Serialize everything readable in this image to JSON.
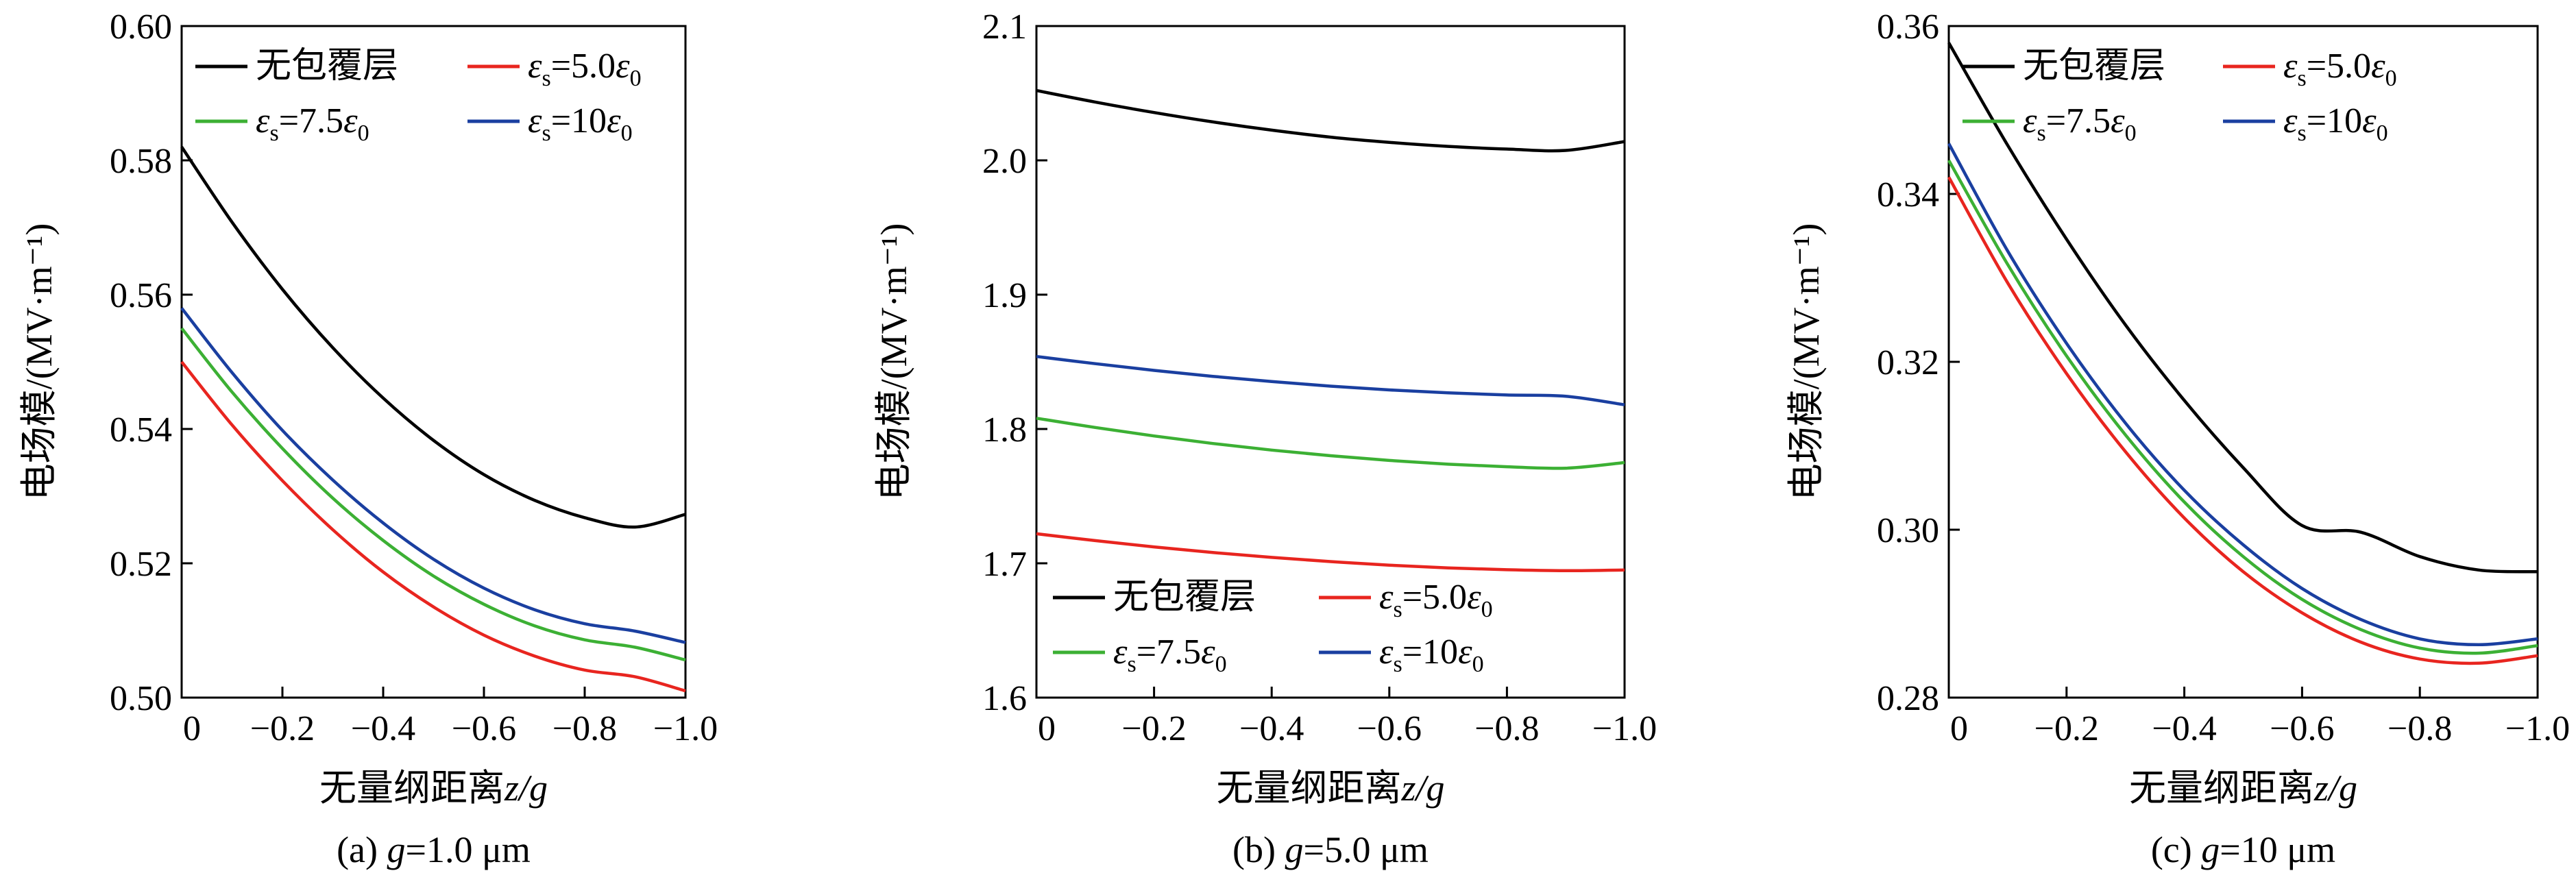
{
  "chart_data": [
    {
      "type": "line",
      "caption_prefix": "(a) ",
      "caption_var": "g",
      "caption_suffix": "=1.0 μm",
      "xlabel_text": "无量纲距离",
      "xlabel_var": "z/g",
      "ylabel": "电场模/(MV·m⁻¹)",
      "xlim": [
        0,
        -1.0
      ],
      "ylim": [
        0.5,
        0.6
      ],
      "xticks": [
        "0",
        "−0.2",
        "−0.4",
        "−0.6",
        "−0.8",
        "−1.0"
      ],
      "yticks": [
        "0.50",
        "0.52",
        "0.54",
        "0.56",
        "0.58",
        "0.60"
      ],
      "legend": "top",
      "x": [
        0,
        -0.1,
        -0.2,
        -0.3,
        -0.4,
        -0.5,
        -0.6,
        -0.7,
        -0.8,
        -0.9,
        -1.0
      ],
      "series": [
        {
          "name": "无包覆层",
          "color": "#000000",
          "values": [
            0.582,
            0.5708,
            0.5608,
            0.5521,
            0.5446,
            0.5383,
            0.5332,
            0.5294,
            0.5268,
            0.5254,
            0.5273
          ]
        },
        {
          "name": "εs=5.0ε0",
          "color": "#e8251f",
          "values": [
            0.55,
            0.5406,
            0.5323,
            0.525,
            0.5187,
            0.5135,
            0.5093,
            0.5062,
            0.5041,
            0.5031,
            0.501
          ]
        },
        {
          "name": "εs=7.5ε0",
          "color": "#3cb034",
          "values": [
            0.555,
            0.5455,
            0.5371,
            0.5297,
            0.5234,
            0.5181,
            0.5139,
            0.5107,
            0.5086,
            0.5075,
            0.5056
          ]
        },
        {
          "name": "εs=10ε0",
          "color": "#1a3fa0",
          "values": [
            0.558,
            0.5484,
            0.5398,
            0.5324,
            0.526,
            0.5206,
            0.5163,
            0.5131,
            0.511,
            0.5099,
            0.5082
          ]
        }
      ]
    },
    {
      "type": "line",
      "caption_prefix": "(b) ",
      "caption_var": "g",
      "caption_suffix": "=5.0 μm",
      "xlabel_text": "无量纲距离",
      "xlabel_var": "z/g",
      "ylabel": "电场模/(MV·m⁻¹)",
      "xlim": [
        0,
        -1.0
      ],
      "ylim": [
        1.6,
        2.1
      ],
      "xticks": [
        "0",
        "−0.2",
        "−0.4",
        "−0.6",
        "−0.8",
        "−1.0"
      ],
      "yticks": [
        "1.6",
        "1.7",
        "1.8",
        "1.9",
        "2.0",
        "2.1"
      ],
      "legend": "bottom",
      "x": [
        0,
        -0.1,
        -0.2,
        -0.3,
        -0.4,
        -0.5,
        -0.6,
        -0.7,
        -0.8,
        -0.9,
        -1.0
      ],
      "series": [
        {
          "name": "无包覆层",
          "color": "#000000",
          "values": [
            2.052,
            2.0434,
            2.0356,
            2.0286,
            2.0225,
            2.0173,
            2.0134,
            2.0104,
            2.0084,
            2.0074,
            2.014
          ]
        },
        {
          "name": "εs=5.0ε0",
          "color": "#e8251f",
          "values": [
            1.722,
            1.7169,
            1.7122,
            1.708,
            1.7044,
            1.7013,
            1.6986,
            1.6966,
            1.6952,
            1.6945,
            1.695
          ]
        },
        {
          "name": "εs=7.5ε0",
          "color": "#3cb034",
          "values": [
            1.808,
            1.8011,
            1.7948,
            1.7892,
            1.7843,
            1.7801,
            1.7766,
            1.7738,
            1.7719,
            1.7708,
            1.775
          ]
        },
        {
          "name": "εs=10ε0",
          "color": "#1a3fa0",
          "values": [
            1.854,
            1.8486,
            1.8436,
            1.8392,
            1.8353,
            1.8319,
            1.8291,
            1.8269,
            1.8253,
            1.8244,
            1.818
          ]
        }
      ]
    },
    {
      "type": "line",
      "caption_prefix": "(c) ",
      "caption_var": "g",
      "caption_suffix": "=10 μm",
      "xlabel_text": "无量纲距离",
      "xlabel_var": "z/g",
      "ylabel": "电场模/(MV·m⁻¹)",
      "xlim": [
        0,
        -1.0
      ],
      "ylim": [
        0.28,
        0.36
      ],
      "xticks": [
        "0",
        "−0.2",
        "−0.4",
        "−0.6",
        "−0.8",
        "−1.0"
      ],
      "yticks": [
        "0.28",
        "0.30",
        "0.32",
        "0.34",
        "0.36"
      ],
      "legend": "top",
      "x": [
        0,
        -0.1,
        -0.2,
        -0.3,
        -0.4,
        -0.5,
        -0.6,
        -0.7,
        -0.8,
        -0.9,
        -1.0
      ],
      "series": [
        {
          "name": "无包覆层",
          "color": "#000000",
          "values": [
            0.358,
            0.3458,
            0.3346,
            0.3244,
            0.3154,
            0.3074,
            0.3005,
            0.2997,
            0.2968,
            0.2952,
            0.295
          ]
        },
        {
          "name": "εs=5.0ε0",
          "color": "#e8251f",
          "values": [
            0.342,
            0.3294,
            0.3186,
            0.3093,
            0.3014,
            0.295,
            0.2901,
            0.2866,
            0.2846,
            0.2841,
            0.285
          ]
        },
        {
          "name": "εs=7.5ε0",
          "color": "#3cb034",
          "values": [
            0.344,
            0.3316,
            0.3207,
            0.3113,
            0.3033,
            0.2968,
            0.2917,
            0.2881,
            0.2859,
            0.2853,
            0.2862
          ]
        },
        {
          "name": "εs=10ε0",
          "color": "#1a3fa0",
          "values": [
            0.346,
            0.3332,
            0.3222,
            0.3127,
            0.3047,
            0.2982,
            0.293,
            0.2893,
            0.287,
            0.2863,
            0.287
          ]
        }
      ]
    }
  ]
}
